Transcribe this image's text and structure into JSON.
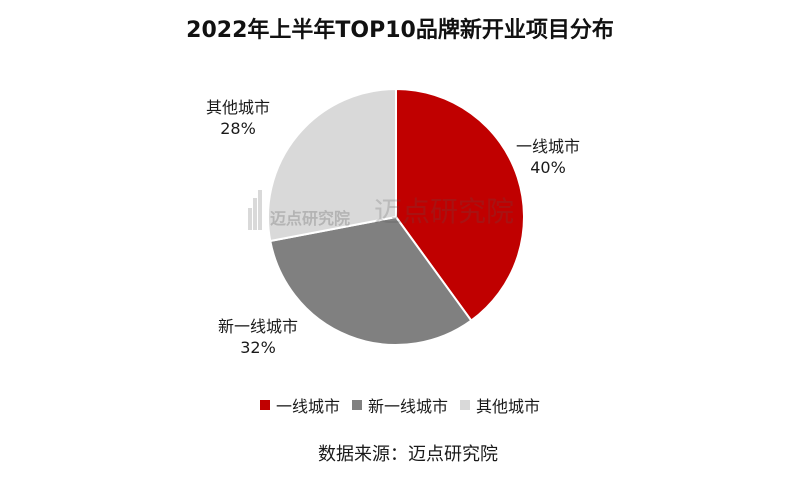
{
  "title": "2022年上半年TOP10品牌新开业项目分布",
  "source": "数据来源：迈点研究院",
  "watermark": {
    "left": "迈点研究院",
    "right": "迈点研究院"
  },
  "chart_data": {
    "type": "pie",
    "title": "2022年上半年TOP10品牌新开业项目分布",
    "start_angle_deg": 0,
    "direction": "clockwise",
    "legend_position": "bottom",
    "slices": [
      {
        "label": "一线城市",
        "value": 40,
        "value_text": "40%",
        "color": "#c00000"
      },
      {
        "label": "新一线城市",
        "value": 32,
        "value_text": "32%",
        "color": "#808080"
      },
      {
        "label": "其他城市",
        "value": 28,
        "value_text": "28%",
        "color": "#d9d9d9"
      }
    ]
  }
}
